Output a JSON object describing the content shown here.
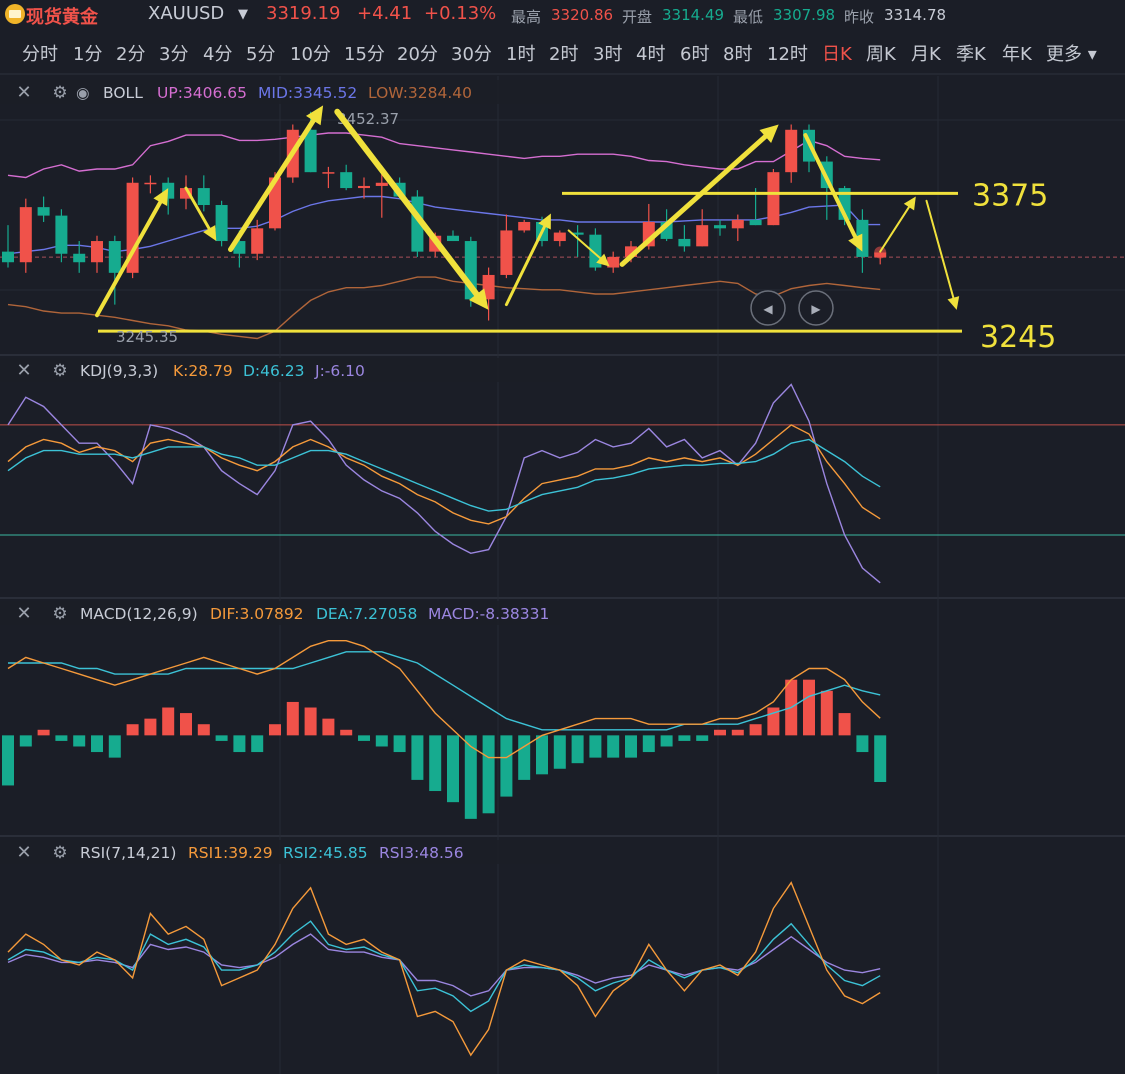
{
  "header": {
    "name": "现货黄金",
    "symbol": "XAUUSD",
    "price": "3319.19",
    "change": "+4.41",
    "change_pct": "+0.13%",
    "high_label": "最高",
    "high": "3320.86",
    "open_label": "开盘",
    "open": "3314.49",
    "low_label": "最低",
    "low": "3307.98",
    "prev_label": "昨收",
    "prev": "3314.78",
    "colors": {
      "up": "#f0524a",
      "down": "#16ab8f",
      "accent": "#f0e13c"
    }
  },
  "intervals": [
    "分时",
    "1分",
    "2分",
    "3分",
    "4分",
    "5分",
    "10分",
    "15分",
    "20分",
    "30分",
    "1时",
    "2时",
    "3时",
    "4时",
    "6时",
    "8时",
    "12时",
    "日K",
    "周K",
    "月K",
    "季K",
    "年K",
    "更多"
  ],
  "active_interval": "日K",
  "boll": {
    "name": "BOLL",
    "up_text": "UP:3406.65",
    "mid_text": "MID:3345.52",
    "low_text": "LOW:3284.40",
    "high_mark": "3452.37",
    "low_mark": "3245.35",
    "level_top": "3375",
    "level_bottom": "3245"
  },
  "kdj": {
    "name": "KDJ(9,3,3)",
    "k_text": "K:28.79",
    "d_text": "D:46.23",
    "j_text": "J:-6.10"
  },
  "macd": {
    "name": "MACD(12,26,9)",
    "dif_text": "DIF:3.07892",
    "dea_text": "DEA:7.27058",
    "macd_text": "MACD:-8.38331"
  },
  "rsi": {
    "name": "RSI(7,14,21)",
    "rsi1_text": "RSI1:39.29",
    "rsi2_text": "RSI2:45.85",
    "rsi3_text": "RSI3:48.56"
  },
  "chart_data": {
    "type": "candlestick",
    "price_range": [
      3230,
      3465
    ],
    "candles": [
      {
        "o": 3320,
        "h": 3345,
        "l": 3305,
        "c": 3310
      },
      {
        "o": 3310,
        "h": 3370,
        "l": 3300,
        "c": 3362
      },
      {
        "o": 3362,
        "h": 3372,
        "l": 3348,
        "c": 3354
      },
      {
        "o": 3354,
        "h": 3360,
        "l": 3310,
        "c": 3318
      },
      {
        "o": 3318,
        "h": 3330,
        "l": 3300,
        "c": 3310
      },
      {
        "o": 3310,
        "h": 3335,
        "l": 3300,
        "c": 3330
      },
      {
        "o": 3330,
        "h": 3335,
        "l": 3270,
        "c": 3300
      },
      {
        "o": 3300,
        "h": 3390,
        "l": 3295,
        "c": 3385
      },
      {
        "o": 3385,
        "h": 3392,
        "l": 3375,
        "c": 3385
      },
      {
        "o": 3385,
        "h": 3390,
        "l": 3355,
        "c": 3370
      },
      {
        "o": 3370,
        "h": 3392,
        "l": 3360,
        "c": 3380
      },
      {
        "o": 3380,
        "h": 3392,
        "l": 3358,
        "c": 3364
      },
      {
        "o": 3364,
        "h": 3368,
        "l": 3325,
        "c": 3330
      },
      {
        "o": 3330,
        "h": 3340,
        "l": 3305,
        "c": 3318
      },
      {
        "o": 3318,
        "h": 3350,
        "l": 3312,
        "c": 3342
      },
      {
        "o": 3342,
        "h": 3395,
        "l": 3340,
        "c": 3390
      },
      {
        "o": 3390,
        "h": 3440,
        "l": 3385,
        "c": 3435
      },
      {
        "o": 3435,
        "h": 3452,
        "l": 3395,
        "c": 3395
      },
      {
        "o": 3395,
        "h": 3400,
        "l": 3380,
        "c": 3395
      },
      {
        "o": 3395,
        "h": 3402,
        "l": 3378,
        "c": 3380
      },
      {
        "o": 3380,
        "h": 3390,
        "l": 3370,
        "c": 3382
      },
      {
        "o": 3382,
        "h": 3398,
        "l": 3352,
        "c": 3385
      },
      {
        "o": 3385,
        "h": 3390,
        "l": 3370,
        "c": 3372
      },
      {
        "o": 3372,
        "h": 3378,
        "l": 3315,
        "c": 3320
      },
      {
        "o": 3320,
        "h": 3338,
        "l": 3315,
        "c": 3335
      },
      {
        "o": 3335,
        "h": 3340,
        "l": 3330,
        "c": 3330
      },
      {
        "o": 3330,
        "h": 3334,
        "l": 3268,
        "c": 3275
      },
      {
        "o": 3275,
        "h": 3305,
        "l": 3255,
        "c": 3298
      },
      {
        "o": 3298,
        "h": 3355,
        "l": 3295,
        "c": 3340
      },
      {
        "o": 3340,
        "h": 3350,
        "l": 3338,
        "c": 3348
      },
      {
        "o": 3348,
        "h": 3353,
        "l": 3325,
        "c": 3330
      },
      {
        "o": 3330,
        "h": 3340,
        "l": 3325,
        "c": 3338
      },
      {
        "o": 3338,
        "h": 3345,
        "l": 3315,
        "c": 3336
      },
      {
        "o": 3336,
        "h": 3342,
        "l": 3302,
        "c": 3305
      },
      {
        "o": 3305,
        "h": 3320,
        "l": 3300,
        "c": 3315
      },
      {
        "o": 3315,
        "h": 3330,
        "l": 3310,
        "c": 3325
      },
      {
        "o": 3325,
        "h": 3365,
        "l": 3322,
        "c": 3348
      },
      {
        "o": 3348,
        "h": 3360,
        "l": 3330,
        "c": 3332
      },
      {
        "o": 3332,
        "h": 3345,
        "l": 3320,
        "c": 3325
      },
      {
        "o": 3325,
        "h": 3360,
        "l": 3325,
        "c": 3345
      },
      {
        "o": 3345,
        "h": 3350,
        "l": 3335,
        "c": 3342
      },
      {
        "o": 3342,
        "h": 3355,
        "l": 3330,
        "c": 3350
      },
      {
        "o": 3350,
        "h": 3380,
        "l": 3345,
        "c": 3345
      },
      {
        "o": 3345,
        "h": 3398,
        "l": 3345,
        "c": 3395
      },
      {
        "o": 3395,
        "h": 3440,
        "l": 3385,
        "c": 3435
      },
      {
        "o": 3435,
        "h": 3440,
        "l": 3395,
        "c": 3405
      },
      {
        "o": 3405,
        "h": 3410,
        "l": 3350,
        "c": 3380
      },
      {
        "o": 3380,
        "h": 3382,
        "l": 3345,
        "c": 3350
      },
      {
        "o": 3350,
        "h": 3360,
        "l": 3300,
        "c": 3315
      },
      {
        "o": 3314.49,
        "h": 3320.86,
        "l": 3307.98,
        "c": 3319.19
      }
    ],
    "boll_up": [
      3392,
      3390,
      3398,
      3402,
      3396,
      3398,
      3398,
      3402,
      3420,
      3424,
      3430,
      3430,
      3430,
      3425,
      3425,
      3426,
      3428,
      3430,
      3432,
      3432,
      3430,
      3428,
      3422,
      3420,
      3418,
      3416,
      3414,
      3412,
      3410,
      3408,
      3410,
      3410,
      3412,
      3412,
      3412,
      3410,
      3406,
      3405,
      3402,
      3400,
      3398,
      3398,
      3405,
      3405,
      3415,
      3425,
      3420,
      3410,
      3408,
      3406.65
    ],
    "boll_mid": [
      3318,
      3320,
      3322,
      3326,
      3326,
      3324,
      3320,
      3322,
      3325,
      3330,
      3335,
      3340,
      3342,
      3342,
      3344,
      3350,
      3358,
      3364,
      3368,
      3370,
      3372,
      3372,
      3370,
      3366,
      3362,
      3360,
      3358,
      3356,
      3354,
      3352,
      3350,
      3350,
      3348,
      3348,
      3348,
      3348,
      3348,
      3348,
      3349,
      3350,
      3350,
      3350,
      3350,
      3353,
      3357,
      3362,
      3363,
      3364,
      3345.52,
      3345.52
    ],
    "boll_low": [
      3270,
      3268,
      3264,
      3262,
      3262,
      3260,
      3258,
      3255,
      3252,
      3250,
      3246,
      3245,
      3242,
      3240,
      3238,
      3245,
      3260,
      3274,
      3282,
      3286,
      3286,
      3288,
      3292,
      3296,
      3296,
      3292,
      3290,
      3288,
      3286,
      3285,
      3284,
      3284,
      3282,
      3280,
      3280,
      3282,
      3284,
      3286,
      3288,
      3290,
      3292,
      3290,
      3280,
      3278,
      3285,
      3288,
      3290,
      3288,
      3286,
      3284.4
    ],
    "kdj_k": [
      60,
      68,
      72,
      70,
      65,
      68,
      66,
      60,
      70,
      72,
      70,
      68,
      62,
      58,
      55,
      60,
      68,
      72,
      68,
      62,
      58,
      52,
      48,
      42,
      38,
      32,
      28,
      26,
      30,
      40,
      48,
      50,
      52,
      56,
      56,
      58,
      62,
      60,
      62,
      60,
      62,
      58,
      64,
      72,
      80,
      75,
      60,
      48,
      35,
      28.79
    ],
    "kdj_d": [
      55,
      62,
      66,
      66,
      64,
      64,
      64,
      62,
      65,
      68,
      68,
      68,
      64,
      62,
      58,
      58,
      62,
      66,
      66,
      64,
      60,
      56,
      52,
      48,
      44,
      40,
      36,
      33,
      34,
      38,
      42,
      44,
      46,
      50,
      51,
      53,
      56,
      57,
      58,
      58,
      59,
      59,
      60,
      64,
      70,
      72,
      66,
      60,
      52,
      46.23
    ],
    "kdj_j": [
      80,
      95,
      90,
      80,
      70,
      70,
      60,
      48,
      80,
      78,
      74,
      68,
      55,
      48,
      42,
      55,
      80,
      82,
      72,
      58,
      50,
      44,
      40,
      32,
      22,
      15,
      10,
      12,
      30,
      62,
      66,
      62,
      65,
      72,
      68,
      70,
      78,
      68,
      72,
      62,
      66,
      58,
      70,
      92,
      102,
      82,
      48,
      20,
      2,
      -6.1
    ],
    "macd_dif": [
      12,
      14,
      13,
      12,
      11,
      10,
      9,
      10,
      11,
      12,
      13,
      14,
      13,
      12,
      11,
      12,
      14,
      16,
      17,
      17,
      16,
      14,
      12,
      8,
      4,
      1,
      -2,
      -4,
      -4,
      -2,
      0,
      1,
      2,
      3,
      3,
      3,
      2,
      2,
      2,
      2,
      3,
      3,
      4,
      6,
      10,
      12,
      12,
      10,
      6,
      3.08
    ],
    "macd_dea": [
      13,
      13,
      13,
      13,
      12,
      12,
      11,
      11,
      11,
      11,
      12,
      12,
      12,
      12,
      12,
      12,
      12,
      13,
      14,
      15,
      15,
      15,
      14,
      13,
      11,
      9,
      7,
      5,
      3,
      2,
      1,
      1,
      1,
      1,
      1,
      1,
      1,
      1,
      2,
      2,
      2,
      2,
      3,
      4,
      5,
      7,
      8,
      9,
      8,
      7.27
    ],
    "macd_hist": [
      -9,
      -2,
      1,
      -1,
      -2,
      -3,
      -4,
      2,
      3,
      5,
      4,
      2,
      -1,
      -3,
      -3,
      2,
      6,
      5,
      3,
      1,
      -1,
      -2,
      -3,
      -8,
      -10,
      -12,
      -15,
      -14,
      -11,
      -8,
      -7,
      -6,
      -5,
      -4,
      -4,
      -4,
      -3,
      -2,
      -1,
      -1,
      1,
      1,
      2,
      5,
      10,
      10,
      8,
      4,
      -3,
      -8.38
    ],
    "rsi1": [
      55,
      62,
      58,
      52,
      50,
      55,
      52,
      45,
      70,
      62,
      65,
      60,
      42,
      45,
      48,
      58,
      72,
      80,
      62,
      58,
      60,
      55,
      52,
      30,
      32,
      28,
      15,
      25,
      48,
      52,
      50,
      48,
      42,
      30,
      40,
      45,
      58,
      48,
      40,
      48,
      50,
      46,
      55,
      72,
      82,
      65,
      48,
      38,
      35,
      39.29
    ],
    "rsi2": [
      52,
      56,
      55,
      52,
      51,
      53,
      52,
      48,
      62,
      58,
      60,
      57,
      48,
      48,
      50,
      55,
      62,
      67,
      58,
      56,
      57,
      54,
      52,
      40,
      41,
      38,
      32,
      36,
      48,
      50,
      49,
      48,
      45,
      40,
      43,
      45,
      52,
      48,
      45,
      48,
      49,
      47,
      52,
      60,
      66,
      58,
      50,
      44,
      42,
      45.85
    ],
    "rsi3": [
      51,
      54,
      53,
      51,
      51,
      52,
      51,
      49,
      58,
      56,
      57,
      55,
      50,
      49,
      50,
      53,
      58,
      62,
      56,
      55,
      55,
      53,
      52,
      44,
      44,
      42,
      38,
      40,
      48,
      49,
      49,
      48,
      46,
      43,
      45,
      46,
      50,
      48,
      46,
      48,
      49,
      48,
      51,
      56,
      61,
      56,
      51,
      48,
      47,
      48.56
    ],
    "kdj_levels": [
      80,
      20
    ],
    "boll_annotations": [
      {
        "type": "level",
        "value": 3375
      },
      {
        "type": "level",
        "value": 3245
      }
    ]
  }
}
